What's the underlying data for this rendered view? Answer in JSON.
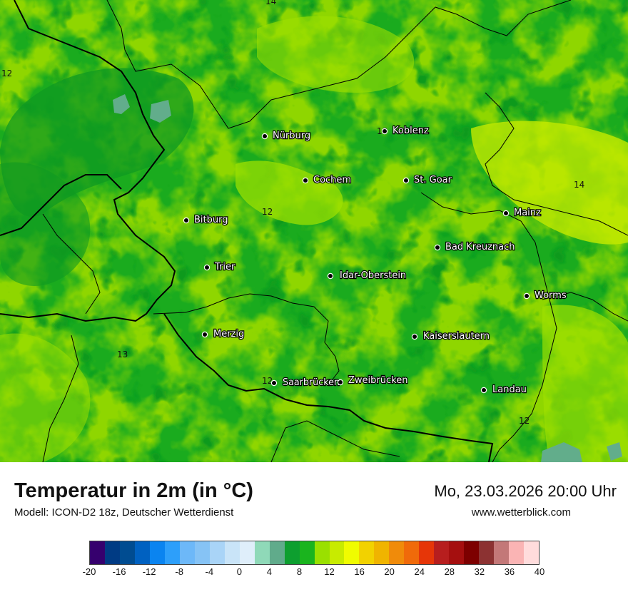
{
  "map": {
    "cities": [
      "Nürburg",
      "Koblenz",
      "Cochem",
      "St. Goar",
      "Mainz",
      "Bitburg",
      "Bad Kreuznach",
      "Trier",
      "Idar-Oberstein",
      "Worms",
      "Merzig",
      "Kaiserslautern",
      "Saarbrücken",
      "Zweibrücken",
      "Landau"
    ],
    "isoline_labels": [
      "14",
      "12",
      "13",
      "14",
      "12",
      "13",
      "12",
      "12"
    ]
  },
  "title": "Temperatur in 2m (in °C)",
  "model": "Modell: ICON-D2 18z, Deutscher Wetterdienst",
  "datetime": "Mo, 23.03.2026 20:00 Uhr",
  "website": "www.wetterblick.com",
  "legend": {
    "colors": [
      "#36006e",
      "#003b84",
      "#004c91",
      "#0061c1",
      "#0a84f0",
      "#2d9ffa",
      "#6db8f8",
      "#86c3f5",
      "#a9d4f7",
      "#c9e4f8",
      "#dfeefa",
      "#8fd9b8",
      "#60ab8b",
      "#0d9f2f",
      "#1ab41e",
      "#9ae000",
      "#c8eb00",
      "#f0fc00",
      "#f2d200",
      "#f0b400",
      "#f08b0a",
      "#f06a0a",
      "#e63608",
      "#b71e1e",
      "#a50f0f",
      "#7d0000",
      "#8c3232",
      "#c37878",
      "#fab4b4",
      "#ffdcdc"
    ],
    "ticks": [
      "-20",
      "-16",
      "-12",
      "-8",
      "-4",
      "0",
      "4",
      "8",
      "12",
      "16",
      "20",
      "24",
      "28",
      "32",
      "36",
      "40"
    ]
  }
}
